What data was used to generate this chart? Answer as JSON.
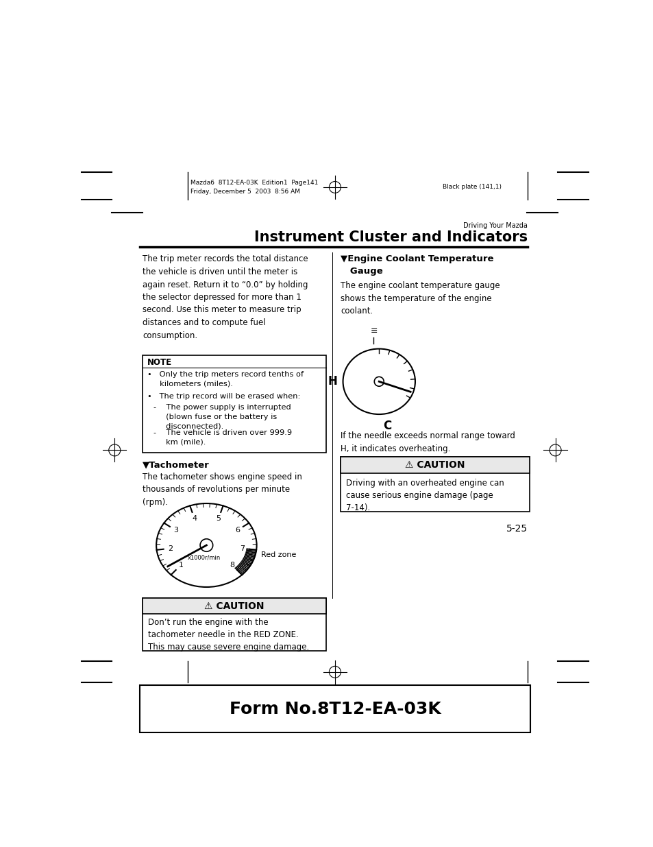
{
  "page_bg": "#ffffff",
  "header_text_left": "Mazda6  8T12-EA-03K  Edition1  Page141\nFriday, December 5  2003  8:56 AM",
  "header_text_right": "Black plate (141,1)",
  "section_label": "Driving Your Mazda",
  "section_title": "Instrument Cluster and Indicators",
  "body_text_left": "The trip meter records the total distance\nthe vehicle is driven until the meter is\nagain reset. Return it to “0.0” by holding\nthe selector depressed for more than 1\nsecond. Use this meter to measure trip\ndistances and to compute fuel\nconsumption.",
  "note_title": "NOTE",
  "note_bullet1": "•   Only the trip meters record tenths of\n     kilometers (miles).",
  "note_bullet2": "•   The trip record will be erased when:",
  "note_sub1": "-    The power supply is interrupted\n     (blown fuse or the battery is\n     disconnected).",
  "note_sub2": "-    The vehicle is driven over 999.9\n     km (mile).",
  "tachometer_title": "▼Tachometer",
  "tachometer_body": "The tachometer shows engine speed in\nthousands of revolutions per minute\n(rpm).",
  "red_zone_label": "Red zone",
  "caution1_title": "⚠ CAUTION",
  "caution1_body": "Don’t run the engine with the\ntachometer needle in the RED ZONE.\nThis may cause severe engine damage.",
  "right_section_title": "▼Engine Coolant Temperature\n   Gauge",
  "right_body": "The engine coolant temperature gauge\nshows the temperature of the engine\ncoolant.",
  "right_note": "If the needle exceeds normal range toward\nH, it indicates overheating.",
  "caution2_title": "⚠ CAUTION",
  "caution2_body": "Driving with an overheated engine can\ncause serious engine damage (page\n7-14).",
  "page_number": "5-25",
  "footer_text": "Form No.8T12-EA-03K"
}
